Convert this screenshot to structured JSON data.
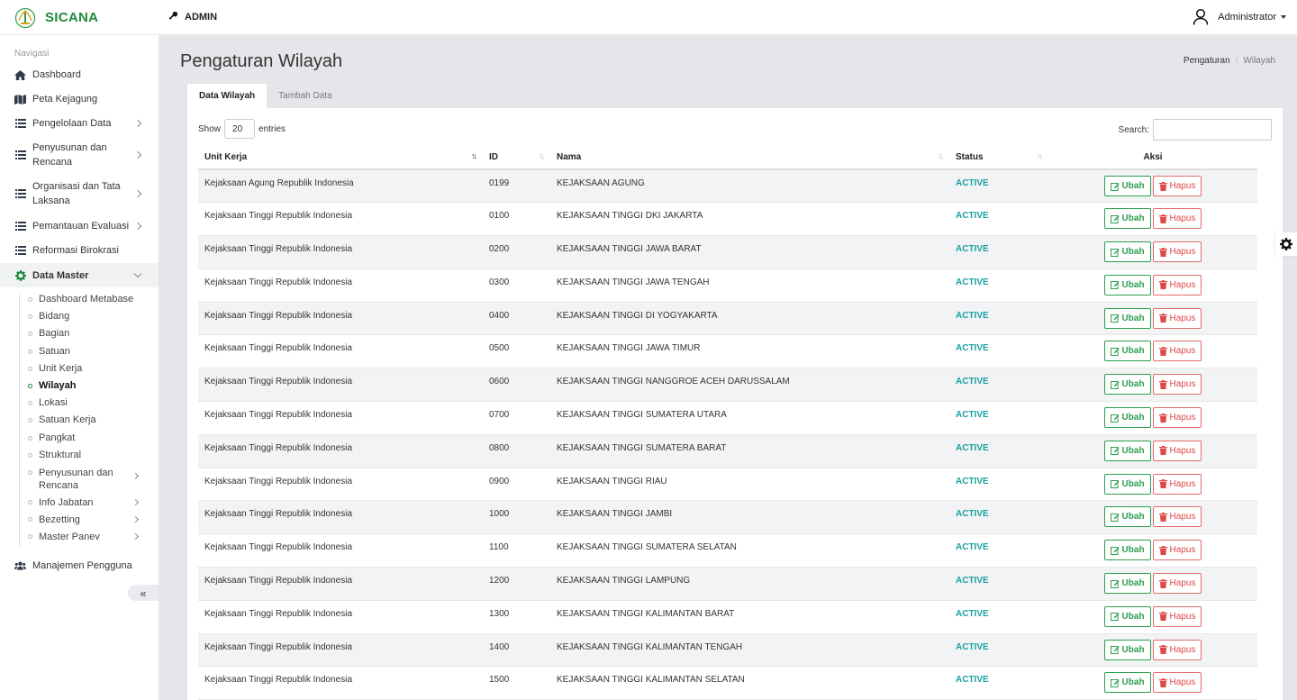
{
  "app": {
    "name": "SICANA"
  },
  "header": {
    "role": "ADMIN",
    "user": "Administrator"
  },
  "sidebar": {
    "heading": "Navigasi",
    "items": [
      {
        "label": "Dashboard",
        "icon": "home-icon"
      },
      {
        "label": "Peta Kejagung",
        "icon": "map-icon"
      },
      {
        "label": "Pengelolaan Data",
        "icon": "list-icon"
      },
      {
        "label": "Penyusunan dan Rencana",
        "line1": "Penyusunan dan",
        "line2": "Rencana",
        "icon": "list-icon"
      },
      {
        "label": "Organisasi dan Tata Laksana",
        "line1": "Organisasi dan Tata",
        "line2": "Laksana",
        "icon": "list-icon"
      },
      {
        "label": "Pemantauan Evaluasi",
        "icon": "list-icon"
      },
      {
        "label": "Reformasi Birokrasi",
        "icon": "list-icon"
      },
      {
        "label": "Data Master",
        "icon": "cog-icon"
      },
      {
        "label": "Manajemen Pengguna",
        "icon": "users-icon"
      }
    ],
    "submenu": [
      "Dashboard Metabase",
      "Bidang",
      "Bagian",
      "Satuan",
      "Unit Kerja",
      "Wilayah",
      "Lokasi",
      "Satuan Kerja",
      "Pangkat",
      "Struktural"
    ],
    "submenu_more": [
      {
        "line1": "Penyusunan dan",
        "line2": "Rencana"
      },
      {
        "line1": "Info Jabatan"
      },
      {
        "line1": "Bezetting"
      },
      {
        "line1": "Master Panev"
      }
    ],
    "collapse_label": "«"
  },
  "page": {
    "title": "Pengaturan Wilayah",
    "breadcrumb": [
      "Pengaturan",
      "Wilayah"
    ],
    "tabs": [
      "Data Wilayah",
      "Tambah Data"
    ]
  },
  "table": {
    "show_label": "Show",
    "entries_value": "20",
    "entries_label": "entries",
    "search_label": "Search:",
    "columns": [
      "Unit Kerja",
      "ID",
      "Nama",
      "Status",
      "Aksi"
    ],
    "edit_label": "Ubah",
    "delete_label": "Hapus",
    "rows": [
      {
        "unit": "Kejaksaan Agung Republik Indonesia",
        "id": "0199",
        "nama": "KEJAKSAAN AGUNG",
        "status": "ACTIVE"
      },
      {
        "unit": "Kejaksaan Tinggi Republik Indonesia",
        "id": "0100",
        "nama": "KEJAKSAAN TINGGI DKI JAKARTA",
        "status": "ACTIVE"
      },
      {
        "unit": "Kejaksaan Tinggi Republik Indonesia",
        "id": "0200",
        "nama": "KEJAKSAAN TINGGI JAWA BARAT",
        "status": "ACTIVE"
      },
      {
        "unit": "Kejaksaan Tinggi Republik Indonesia",
        "id": "0300",
        "nama": "KEJAKSAAN TINGGI JAWA TENGAH",
        "status": "ACTIVE"
      },
      {
        "unit": "Kejaksaan Tinggi Republik Indonesia",
        "id": "0400",
        "nama": "KEJAKSAAN TINGGI DI YOGYAKARTA",
        "status": "ACTIVE"
      },
      {
        "unit": "Kejaksaan Tinggi Republik Indonesia",
        "id": "0500",
        "nama": "KEJAKSAAN TINGGI JAWA TIMUR",
        "status": "ACTIVE"
      },
      {
        "unit": "Kejaksaan Tinggi Republik Indonesia",
        "id": "0600",
        "nama": "KEJAKSAAN TINGGI NANGGROE ACEH DARUSSALAM",
        "status": "ACTIVE"
      },
      {
        "unit": "Kejaksaan Tinggi Republik Indonesia",
        "id": "0700",
        "nama": "KEJAKSAAN TINGGI SUMATERA UTARA",
        "status": "ACTIVE"
      },
      {
        "unit": "Kejaksaan Tinggi Republik Indonesia",
        "id": "0800",
        "nama": "KEJAKSAAN TINGGI SUMATERA BARAT",
        "status": "ACTIVE"
      },
      {
        "unit": "Kejaksaan Tinggi Republik Indonesia",
        "id": "0900",
        "nama": "KEJAKSAAN TINGGI RIAU",
        "status": "ACTIVE"
      },
      {
        "unit": "Kejaksaan Tinggi Republik Indonesia",
        "id": "1000",
        "nama": "KEJAKSAAN TINGGI JAMBI",
        "status": "ACTIVE"
      },
      {
        "unit": "Kejaksaan Tinggi Republik Indonesia",
        "id": "1100",
        "nama": "KEJAKSAAN TINGGI SUMATERA SELATAN",
        "status": "ACTIVE"
      },
      {
        "unit": "Kejaksaan Tinggi Republik Indonesia",
        "id": "1200",
        "nama": "KEJAKSAAN TINGGI LAMPUNG",
        "status": "ACTIVE"
      },
      {
        "unit": "Kejaksaan Tinggi Republik Indonesia",
        "id": "1300",
        "nama": "KEJAKSAAN TINGGI KALIMANTAN BARAT",
        "status": "ACTIVE"
      },
      {
        "unit": "Kejaksaan Tinggi Republik Indonesia",
        "id": "1400",
        "nama": "KEJAKSAAN TINGGI KALIMANTAN TENGAH",
        "status": "ACTIVE"
      },
      {
        "unit": "Kejaksaan Tinggi Republik Indonesia",
        "id": "1500",
        "nama": "KEJAKSAAN TINGGI KALIMANTAN SELATAN",
        "status": "ACTIVE"
      }
    ]
  },
  "colors": {
    "brand": "#1e8a3c",
    "status_active": "#1aa0a0",
    "edit": "#2e9e4e",
    "delete": "#e04848"
  }
}
